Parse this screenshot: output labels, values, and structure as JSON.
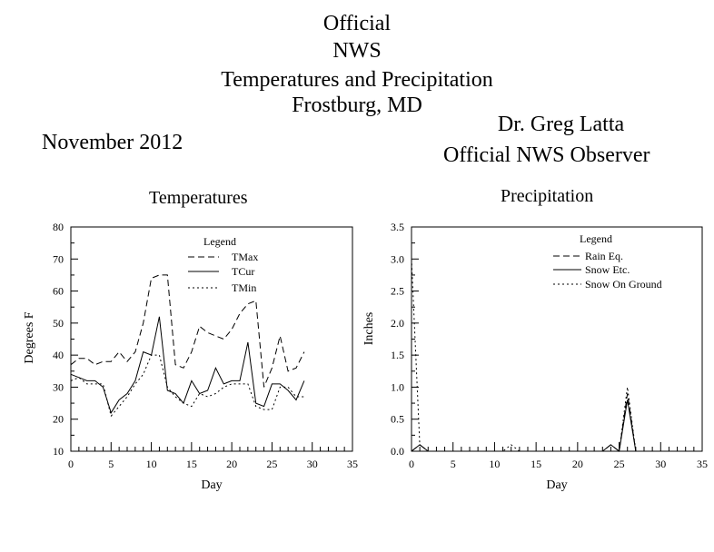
{
  "header": {
    "title_lines": [
      "Official",
      "NWS",
      "Temperatures and Precipitation",
      "Frostburg, MD"
    ],
    "observer_name": "Dr. Greg Latta",
    "observer_role": "Official NWS Observer",
    "month": "November 2012"
  },
  "chart_data": [
    {
      "type": "line",
      "title": "Temperatures",
      "xlabel": "Day",
      "ylabel": "Degrees F",
      "xlim": [
        0,
        35
      ],
      "ylim": [
        10,
        80
      ],
      "xticks": [
        0,
        5,
        10,
        15,
        20,
        25,
        30,
        35
      ],
      "yticks": [
        10,
        20,
        30,
        40,
        50,
        60,
        70,
        80
      ],
      "legend_title": "Legend",
      "legend_position": "top-center",
      "grid": false,
      "x": [
        0,
        1,
        2,
        3,
        4,
        5,
        6,
        7,
        8,
        9,
        10,
        11,
        12,
        13,
        14,
        15,
        16,
        17,
        18,
        19,
        20,
        21,
        22,
        23,
        24,
        25,
        26,
        27,
        28,
        29
      ],
      "series": [
        {
          "name": "TMax",
          "style": "dashed",
          "values": [
            37,
            39,
            39,
            37,
            38,
            38,
            41,
            38,
            41,
            50,
            64,
            65,
            65,
            37,
            36,
            41,
            49,
            47,
            46,
            45,
            48,
            53,
            56,
            57,
            30,
            36,
            46,
            35,
            36,
            41
          ]
        },
        {
          "name": "TCur",
          "style": "solid",
          "values": [
            34,
            33,
            32,
            32,
            30,
            22,
            26,
            28,
            32,
            41,
            40,
            52,
            29,
            28,
            25,
            32,
            28,
            29,
            36,
            31,
            32,
            32,
            44,
            25,
            24,
            31,
            31,
            29,
            26,
            32
          ]
        },
        {
          "name": "TMin",
          "style": "dotted",
          "values": [
            32,
            33,
            31,
            31,
            31,
            21,
            24,
            27,
            31,
            34,
            40,
            40,
            30,
            27,
            25,
            24,
            28,
            27,
            28,
            30,
            31,
            31,
            31,
            24,
            23,
            23,
            30,
            30,
            27,
            27
          ]
        }
      ]
    },
    {
      "type": "line",
      "title": "Precipitation",
      "xlabel": "Day",
      "ylabel": "Inches",
      "xlim": [
        0,
        35
      ],
      "ylim": [
        0,
        3.5
      ],
      "xticks": [
        0,
        5,
        10,
        15,
        20,
        25,
        30,
        35
      ],
      "yticks": [
        0.0,
        0.5,
        1.0,
        1.5,
        2.0,
        2.5,
        3.0,
        3.5
      ],
      "ytick_labels": [
        "0.0",
        "0.5",
        "1.0",
        "1.5",
        "2.0",
        "2.5",
        "3.0",
        "3.5"
      ],
      "legend_title": "Legend",
      "legend_position": "top-right",
      "grid": false,
      "x": [
        0,
        1,
        2,
        3,
        4,
        5,
        6,
        7,
        8,
        9,
        10,
        11,
        12,
        13,
        14,
        15,
        16,
        17,
        18,
        19,
        20,
        21,
        22,
        23,
        24,
        25,
        26,
        27,
        28,
        29
      ],
      "series": [
        {
          "name": "Rain Eq.",
          "style": "dashed",
          "values": [
            0,
            0.1,
            0,
            0,
            0,
            0,
            0,
            0,
            0,
            0,
            0,
            0,
            0,
            0,
            0,
            0,
            0,
            0,
            0,
            0,
            0,
            0,
            0,
            0,
            0.1,
            0,
            0.9,
            0,
            0,
            0
          ]
        },
        {
          "name": "Snow Etc.",
          "style": "solid",
          "values": [
            0,
            0.1,
            0,
            0,
            0,
            0,
            0,
            0,
            0,
            0,
            0,
            0,
            0,
            0,
            0,
            0,
            0,
            0,
            0,
            0,
            0,
            0,
            0,
            0,
            0.1,
            0,
            0.8,
            0,
            0,
            0
          ]
        },
        {
          "name": "Snow On Ground",
          "style": "dotted",
          "values": [
            3.0,
            0.1,
            0,
            0,
            0,
            0,
            0,
            0,
            0,
            0,
            0,
            0,
            0.1,
            0,
            0,
            0,
            0,
            0,
            0,
            0,
            0,
            0,
            0,
            0,
            0,
            0,
            1.0,
            0,
            0,
            0
          ]
        }
      ]
    }
  ]
}
